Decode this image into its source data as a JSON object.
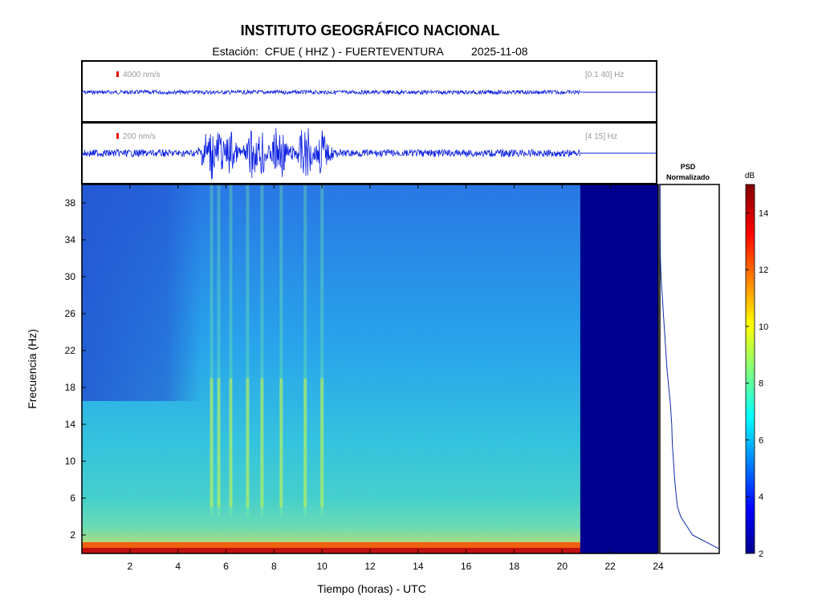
{
  "title": "INSTITUTO GEOGRÁFICO NACIONAL",
  "subtitle": {
    "station_label": "Estación:",
    "station": "CFUE ( HHZ ) - FUERTEVENTURA",
    "date": "2025-11-08"
  },
  "chart_data": [
    {
      "type": "line",
      "panel": "seismogram-broadband",
      "scale_label": "4000 nm/s",
      "band_label": "[0.1 40] Hz",
      "xlim": [
        0,
        24
      ],
      "data_end_hour": 20.75
    },
    {
      "type": "line",
      "panel": "seismogram-filtered",
      "scale_label": "200 nm/s",
      "band_label": "[4 15] Hz",
      "xlim": [
        0,
        24
      ],
      "data_end_hour": 20.75,
      "burst_hours": [
        5.2,
        5.4,
        5.7,
        6.2,
        7.1,
        7.5,
        8.1,
        8.3,
        9.2,
        9.4,
        10.0
      ]
    },
    {
      "type": "heatmap",
      "panel": "spectrogram",
      "xlabel": "Tiempo (horas) - UTC",
      "ylabel": "Frecuencia  (Hz)",
      "xlim": [
        0,
        24
      ],
      "ylim": [
        0,
        40
      ],
      "xticks": [
        2,
        4,
        6,
        8,
        10,
        12,
        14,
        16,
        18,
        20,
        22,
        24
      ],
      "yticks": [
        2,
        6,
        10,
        14,
        18,
        22,
        26,
        30,
        34,
        38
      ],
      "data_end_hour": 20.75,
      "vertical_stripe_hours": [
        5.4,
        5.7,
        6.2,
        6.9,
        7.5,
        8.3,
        9.3,
        10.0
      ]
    },
    {
      "type": "line",
      "panel": "psd",
      "title": "PSD\nNormalizado",
      "y": [
        0.5,
        2,
        4,
        5,
        6,
        8,
        10,
        12,
        14,
        16,
        18,
        20,
        22,
        24,
        26,
        28,
        30,
        32,
        34,
        38,
        40
      ],
      "x": [
        1.0,
        0.55,
        0.35,
        0.3,
        0.28,
        0.25,
        0.23,
        0.21,
        0.2,
        0.18,
        0.15,
        0.12,
        0.1,
        0.08,
        0.06,
        0.04,
        0.02,
        0.01,
        0.005,
        0.003,
        0.002
      ]
    }
  ],
  "colorbar": {
    "label": "dB",
    "range": [
      2,
      15
    ],
    "ticks": [
      2,
      4,
      6,
      8,
      10,
      12,
      14
    ]
  }
}
